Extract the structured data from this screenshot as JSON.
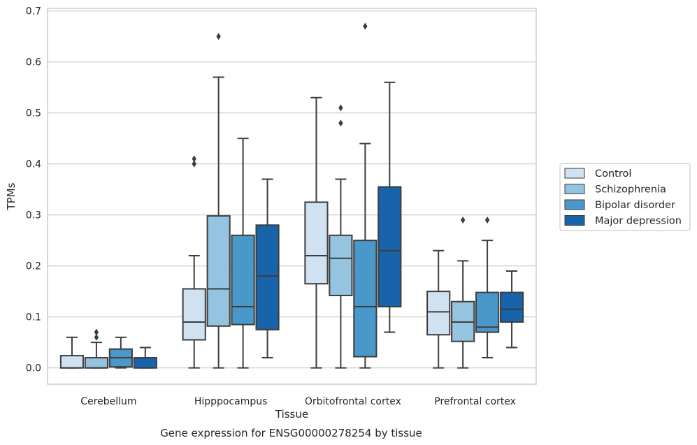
{
  "chart_data": {
    "type": "boxplot",
    "title": "Gene expression for ENSG00000278254 by tissue",
    "xlabel": "Tissue",
    "ylabel": "TPMs",
    "ylim": [
      -0.032,
      0.705
    ],
    "yticks": [
      0.0,
      0.1,
      0.2,
      0.3,
      0.4,
      0.5,
      0.6,
      0.7
    ],
    "ytick_labels": [
      "0.0",
      "0.1",
      "0.2",
      "0.3",
      "0.4",
      "0.5",
      "0.6",
      "0.7"
    ],
    "grid": "horizontal",
    "legend_position": "right",
    "categories": [
      "Cerebellum",
      "Hipppocampus",
      "Orbitofrontal cortex",
      "Prefrontal cortex"
    ],
    "series": [
      {
        "name": "Control",
        "color": "#d0e1f2",
        "boxes": [
          {
            "whislo": 0.0,
            "q1": 0.0,
            "med": 0.0,
            "q3": 0.024,
            "whishi": 0.06,
            "fliers": []
          },
          {
            "whislo": 0.0,
            "q1": 0.055,
            "med": 0.09,
            "q3": 0.155,
            "whishi": 0.22,
            "fliers": [
              0.4,
              0.41
            ]
          },
          {
            "whislo": 0.0,
            "q1": 0.165,
            "med": 0.22,
            "q3": 0.325,
            "whishi": 0.53,
            "fliers": []
          },
          {
            "whislo": 0.0,
            "q1": 0.065,
            "med": 0.11,
            "q3": 0.15,
            "whishi": 0.23,
            "fliers": []
          }
        ]
      },
      {
        "name": "Schizophrenia",
        "color": "#94c4df",
        "boxes": [
          {
            "whislo": 0.0,
            "q1": 0.0,
            "med": 0.0,
            "q3": 0.02,
            "whishi": 0.05,
            "fliers": [
              0.06,
              0.07
            ]
          },
          {
            "whislo": 0.0,
            "q1": 0.082,
            "med": 0.155,
            "q3": 0.298,
            "whishi": 0.57,
            "fliers": [
              0.65
            ]
          },
          {
            "whislo": 0.0,
            "q1": 0.142,
            "med": 0.215,
            "q3": 0.26,
            "whishi": 0.37,
            "fliers": [
              0.48,
              0.51
            ]
          },
          {
            "whislo": 0.0,
            "q1": 0.052,
            "med": 0.09,
            "q3": 0.13,
            "whishi": 0.21,
            "fliers": [
              0.29
            ]
          }
        ]
      },
      {
        "name": "Bipolar disorder",
        "color": "#4a98c9",
        "boxes": [
          {
            "whislo": 0.0,
            "q1": 0.002,
            "med": 0.02,
            "q3": 0.037,
            "whishi": 0.06,
            "fliers": []
          },
          {
            "whislo": 0.0,
            "q1": 0.085,
            "med": 0.12,
            "q3": 0.26,
            "whishi": 0.45,
            "fliers": []
          },
          {
            "whislo": 0.0,
            "q1": 0.022,
            "med": 0.12,
            "q3": 0.25,
            "whishi": 0.44,
            "fliers": [
              0.67
            ]
          },
          {
            "whislo": 0.02,
            "q1": 0.07,
            "med": 0.08,
            "q3": 0.148,
            "whishi": 0.25,
            "fliers": [
              0.29
            ]
          }
        ]
      },
      {
        "name": "Major depression",
        "color": "#1764ab",
        "boxes": [
          {
            "whislo": 0.0,
            "q1": 0.0,
            "med": 0.0,
            "q3": 0.02,
            "whishi": 0.04,
            "fliers": []
          },
          {
            "whislo": 0.02,
            "q1": 0.075,
            "med": 0.18,
            "q3": 0.28,
            "whishi": 0.37,
            "fliers": []
          },
          {
            "whislo": 0.07,
            "q1": 0.12,
            "med": 0.23,
            "q3": 0.355,
            "whishi": 0.56,
            "fliers": []
          },
          {
            "whislo": 0.04,
            "q1": 0.09,
            "med": 0.115,
            "q3": 0.148,
            "whishi": 0.19,
            "fliers": []
          }
        ]
      }
    ]
  }
}
